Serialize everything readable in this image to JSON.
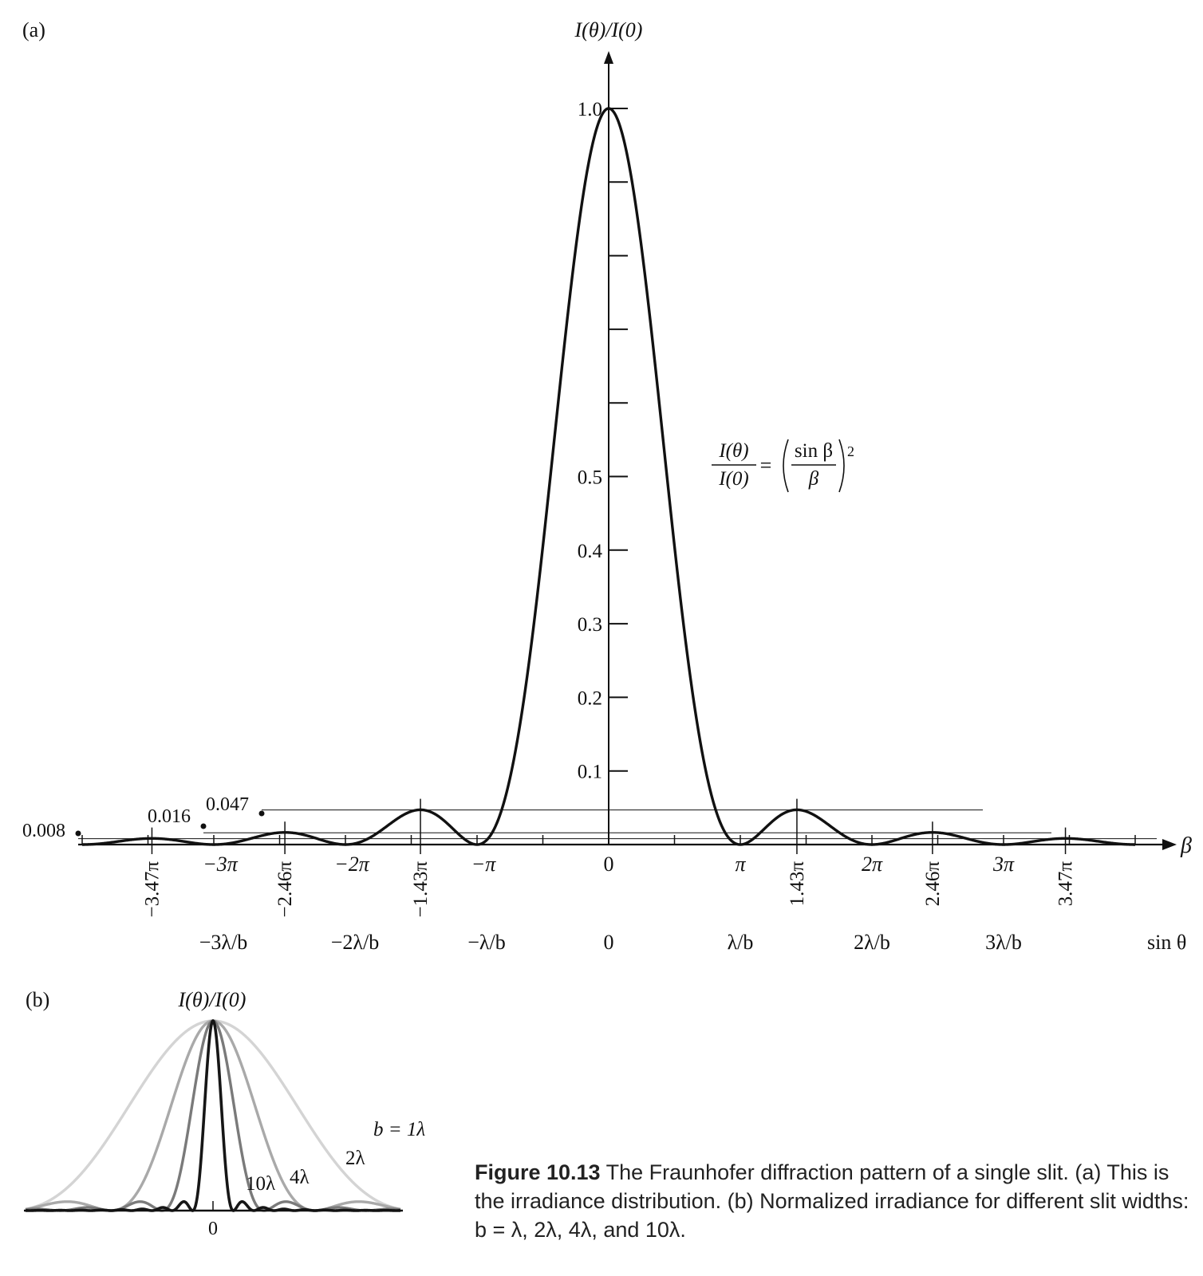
{
  "panel_a": {
    "label": "(a)",
    "y_axis_label": "I(θ)/I(0)",
    "x_axis_beta_label": "β",
    "x_axis_sin_label": "sin θ",
    "formula": {
      "lhs_num": "I(θ)",
      "lhs_den": "I(0)",
      "eq": "=",
      "num": "sin β",
      "den": "β",
      "exp": "2"
    },
    "secondary_max_labels": [
      {
        "value": "0.047",
        "beta_pi": -1.43
      },
      {
        "value": "0.016",
        "beta_pi": -2.46
      },
      {
        "value": "0.008",
        "beta_pi": -3.47
      }
    ]
  },
  "panel_b": {
    "label": "(b)",
    "y_axis_label": "I(θ)/I(0)",
    "x_zero_label": "0",
    "series_labels": {
      "b1": "b = 1λ",
      "b2": "2λ",
      "b4": "4λ",
      "b10": "10λ"
    }
  },
  "caption": {
    "number": "Figure 10.13",
    "text": " The Fraunhofer diffraction pattern of a single slit. (a) This is the irradiance distribution. (b) Normalized irradiance for different slit widths: b = λ, 2λ, 4λ, and 10λ."
  },
  "chart_data": [
    {
      "type": "line",
      "panel": "a",
      "function": "(sin β / β)^2",
      "xlabel": "β",
      "ylabel": "I(θ)/I(0)",
      "xlim_pi": [
        -4,
        4
      ],
      "ylim": [
        0,
        1.0
      ],
      "y_tick_labels": [
        "1.0",
        "0.5",
        "0.4",
        "0.3",
        "0.2",
        "0.1"
      ],
      "y_tick_values": [
        1.0,
        0.5,
        0.4,
        0.3,
        0.2,
        0.1
      ],
      "y_minor_ticks": [
        0.9,
        0.8,
        0.7,
        0.6
      ],
      "beta_ticks": [
        {
          "pi": -3,
          "label": "−3π"
        },
        {
          "pi": -2,
          "label": "−2π"
        },
        {
          "pi": -1,
          "label": "−π"
        },
        {
          "pi": 0,
          "label": "0"
        },
        {
          "pi": 1,
          "label": "π"
        },
        {
          "pi": 2,
          "label": "2π"
        },
        {
          "pi": 3,
          "label": "3π"
        }
      ],
      "beta_rotated_ticks": [
        {
          "pi": -3.47,
          "label": "−3.47π"
        },
        {
          "pi": -2.46,
          "label": "−2.46π"
        },
        {
          "pi": -1.43,
          "label": "−1.43π"
        },
        {
          "pi": 1.43,
          "label": "1.43π"
        },
        {
          "pi": 2.46,
          "label": "2.46π"
        },
        {
          "pi": 3.47,
          "label": "3.47π"
        }
      ],
      "sin_theta_ticks": [
        {
          "pi": -3,
          "label": "−3λ/b"
        },
        {
          "pi": -2,
          "label": "−2λ/b"
        },
        {
          "pi": -1,
          "label": "−λ/b"
        },
        {
          "pi": 0,
          "label": "0"
        },
        {
          "pi": 1,
          "label": "λ/b"
        },
        {
          "pi": 2,
          "label": "2λ/b"
        },
        {
          "pi": 3,
          "label": "3λ/b"
        }
      ],
      "secondary_maxima": [
        {
          "beta_pi": 1.43,
          "value": 0.047
        },
        {
          "beta_pi": 2.46,
          "value": 0.016
        },
        {
          "beta_pi": 3.47,
          "value": 0.008
        }
      ],
      "color": "#111111"
    },
    {
      "type": "line",
      "panel": "b",
      "ylabel": "I(θ)/I(0)",
      "function": "(sin β / β)^2, β = π b sinθ / λ",
      "series": [
        {
          "name": "b = 1λ",
          "slit_width_lambda": 1,
          "color": "#d4d4d4"
        },
        {
          "name": "2λ",
          "slit_width_lambda": 2,
          "color": "#a9a9a9"
        },
        {
          "name": "4λ",
          "slit_width_lambda": 4,
          "color": "#7a7a7a"
        },
        {
          "name": "10λ",
          "slit_width_lambda": 10,
          "color": "#161616"
        }
      ]
    }
  ]
}
